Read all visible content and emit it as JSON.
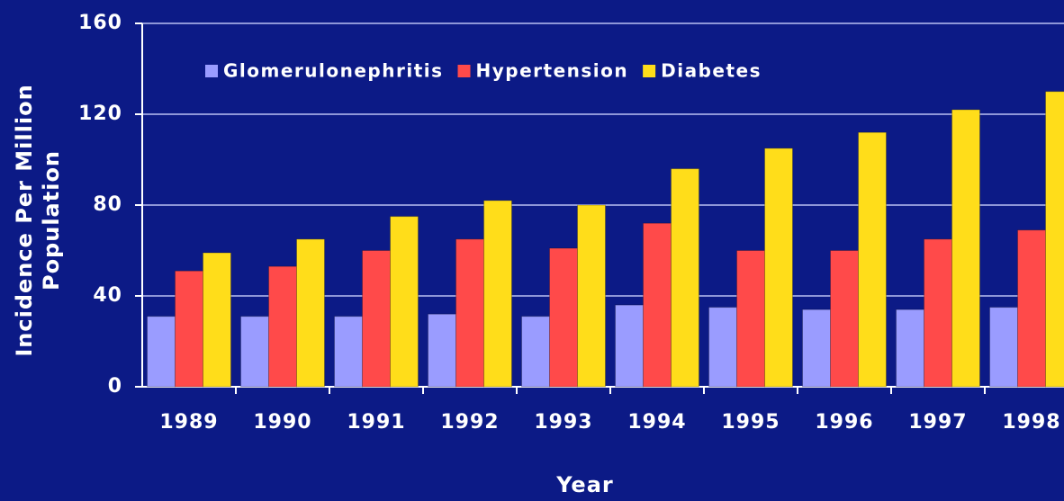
{
  "chart_data": {
    "type": "bar",
    "x_label": "Year",
    "y_label": [
      "Incidence Per Million",
      "Population"
    ],
    "categories": [
      "1989",
      "1990",
      "1991",
      "1992",
      "1993",
      "1994",
      "1995",
      "1996",
      "1997",
      "1998"
    ],
    "series": [
      {
        "name": "Glomerulonephritis",
        "color": "#9a9cff",
        "values": [
          31,
          31,
          31,
          32,
          31,
          36,
          35,
          34,
          34,
          35
        ]
      },
      {
        "name": "Hypertension",
        "color": "#ff4a4a",
        "values": [
          51,
          53,
          60,
          65,
          61,
          72,
          60,
          60,
          65,
          69
        ]
      },
      {
        "name": "Diabetes",
        "color": "#ffdd1a",
        "values": [
          59,
          65,
          75,
          82,
          80,
          96,
          105,
          112,
          122,
          130
        ]
      }
    ],
    "ylim": [
      0,
      160
    ],
    "yticks": [
      0,
      40,
      80,
      120,
      160
    ],
    "grid": true
  }
}
